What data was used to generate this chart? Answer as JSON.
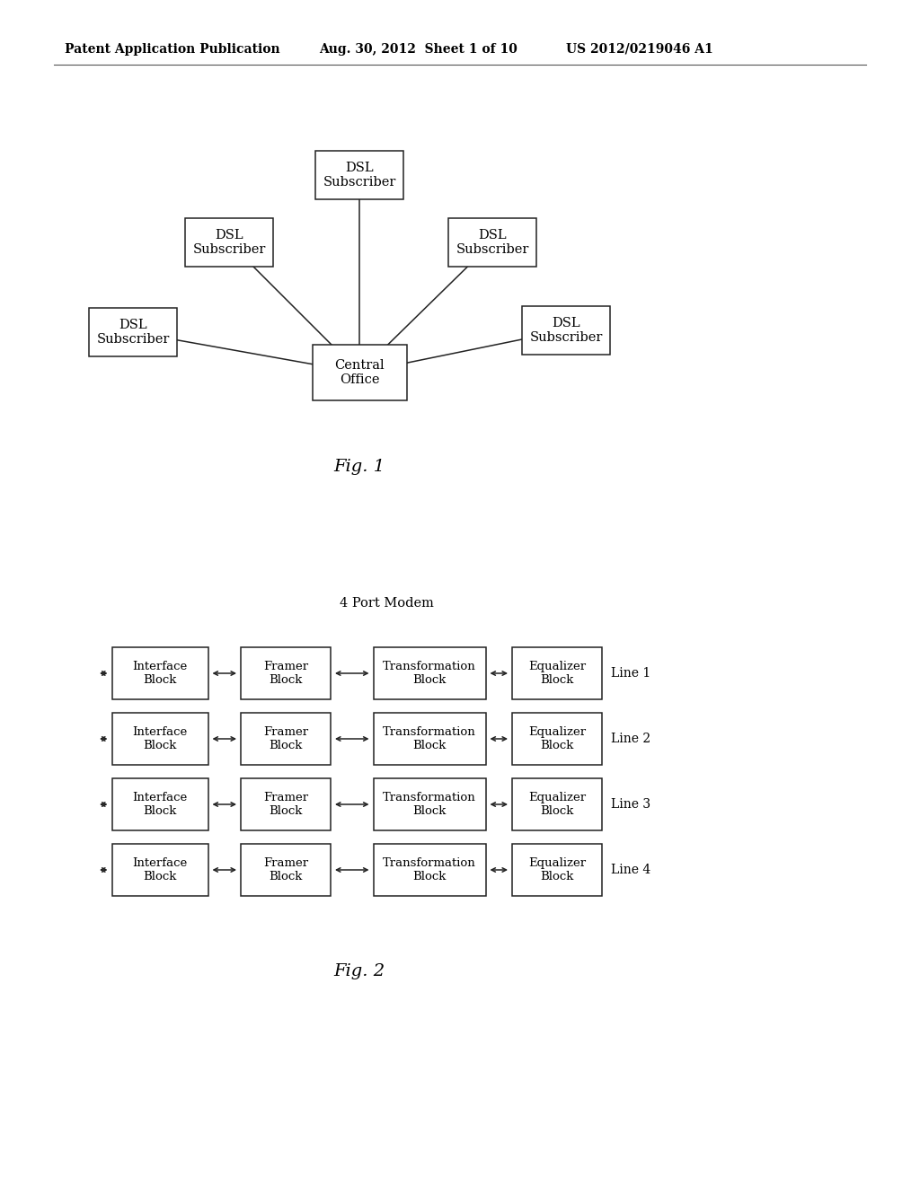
{
  "header_left": "Patent Application Publication",
  "header_center": "Aug. 30, 2012  Sheet 1 of 10",
  "header_right": "US 2012/0219046 A1",
  "fig1_label": "Fig. 1",
  "fig2_label": "Fig. 2",
  "fig2_title": "4 Port Modem",
  "central_office": "Central\nOffice",
  "dsl_labels": [
    "DSL\nSubscriber",
    "DSL\nSubscriber",
    "DSL\nSubscriber",
    "DSL\nSubscriber",
    "DSL\nSubscriber"
  ],
  "block_rows": [
    {
      "line": "Line 1"
    },
    {
      "line": "Line 2"
    },
    {
      "line": "Line 3"
    },
    {
      "line": "Line 4"
    }
  ],
  "block_labels": [
    "Interface\nBlock",
    "Framer\nBlock",
    "Transformation\nBlock",
    "Equalizer\nBlock"
  ],
  "bg_color": "#ffffff",
  "box_color": "#ffffff",
  "box_edge_color": "#222222",
  "text_color": "#000000",
  "line_color": "#222222"
}
